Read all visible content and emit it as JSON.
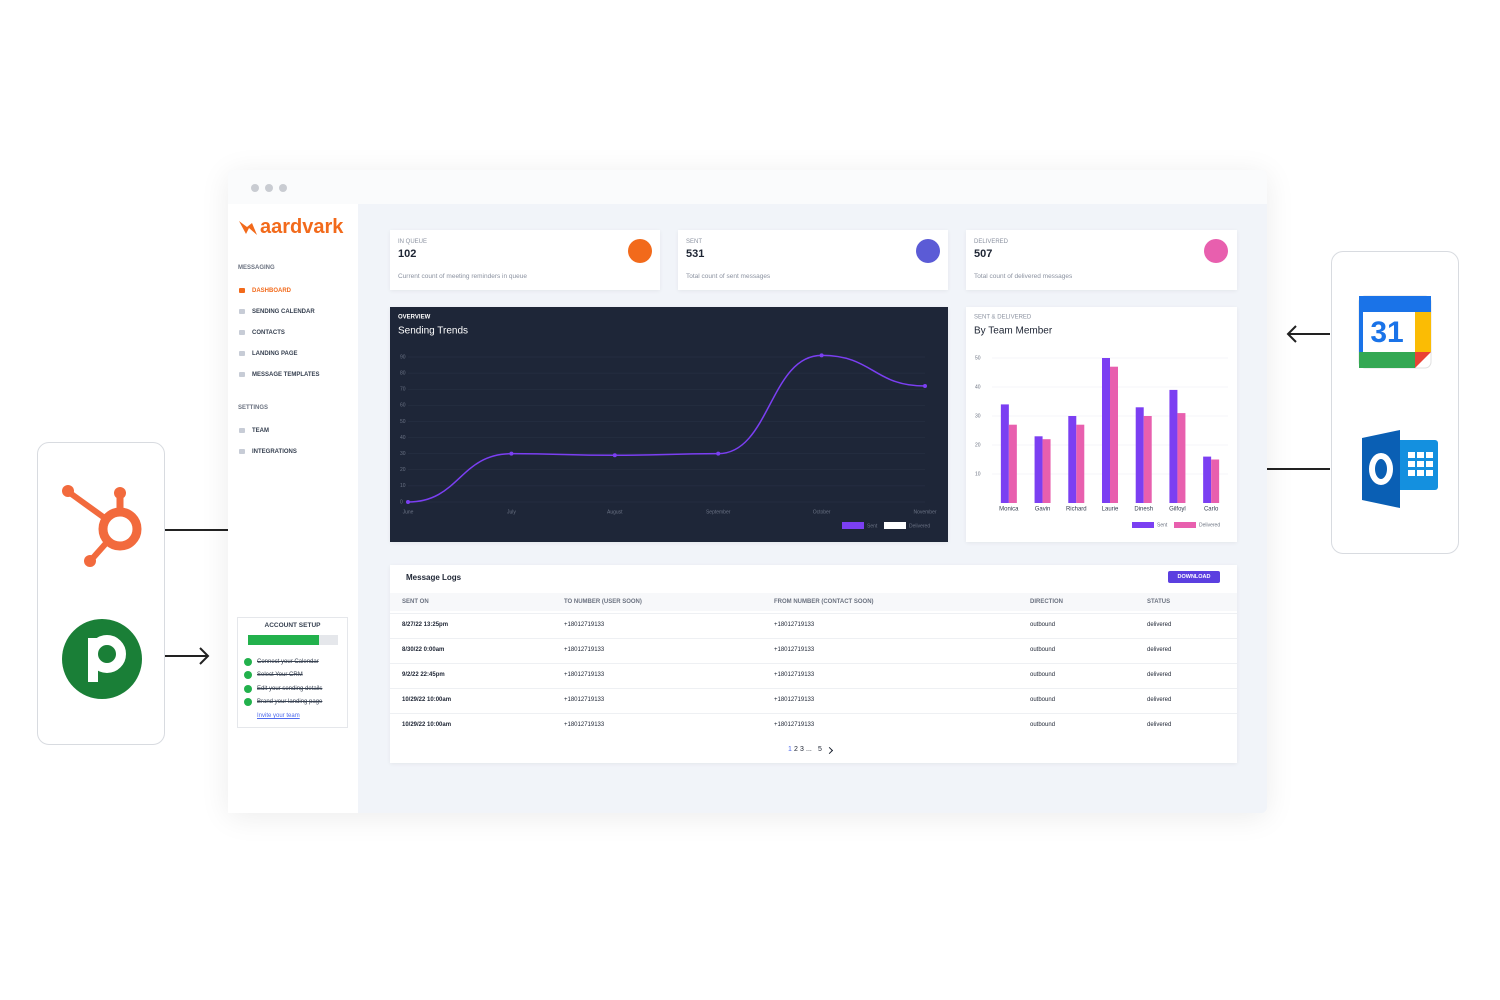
{
  "sidebar": {
    "logo": "aardvark",
    "sections": [
      {
        "label": "MESSAGING",
        "items": [
          "DASHBOARD",
          "SENDING CALENDAR",
          "CONTACTS",
          "LANDING PAGE",
          "MESSAGE TEMPLATES"
        ]
      },
      {
        "label": "SETTINGS",
        "items": [
          "TEAM",
          "INTEGRATIONS"
        ]
      }
    ],
    "account_setup": {
      "title": "ACCOUNT SETUP",
      "steps": [
        "Connect your Calendar",
        "Select Your CRM",
        "Edit your sending details",
        "Brand your landing page"
      ],
      "link": "Invite your team"
    }
  },
  "stats": [
    {
      "label": "IN QUEUE",
      "value": "102",
      "description": "Current count of meeting reminders in queue"
    },
    {
      "label": "SENT",
      "value": "531",
      "description": "Total count of sent messages"
    },
    {
      "label": "DELIVERED",
      "value": "507",
      "description": "Total count of delivered messages"
    }
  ],
  "chart_data": [
    {
      "type": "line",
      "subtitle": "OVERVIEW",
      "title": "Sending Trends",
      "categories": [
        "June",
        "July",
        "August",
        "September",
        "October",
        "November"
      ],
      "series": [
        {
          "name": "Sent",
          "color": "#7b3ff2",
          "values": [
            0,
            30,
            29,
            30,
            91,
            72
          ]
        },
        {
          "name": "Delivered",
          "color": "#ffffff",
          "values": [
            null,
            null,
            null,
            null,
            null,
            null
          ]
        }
      ],
      "ylim": [
        0,
        90
      ],
      "yticks": [
        0,
        10,
        20,
        30,
        40,
        50,
        60,
        70,
        80,
        90
      ]
    },
    {
      "type": "bar",
      "subtitle": "SENT & DELIVERED",
      "title": "By Team Member",
      "categories": [
        "Monica",
        "Gavin",
        "Richard",
        "Laurie",
        "Dinesh",
        "Gilfoyl",
        "Carlo"
      ],
      "series": [
        {
          "name": "Sent",
          "color": "#7b3ff2",
          "values": [
            34,
            23,
            30,
            50,
            33,
            39,
            16
          ]
        },
        {
          "name": "Delivered",
          "color": "#e85fae",
          "values": [
            27,
            22,
            27,
            47,
            30,
            31,
            15
          ]
        }
      ],
      "ylim": [
        0,
        50
      ],
      "yticks": [
        10,
        20,
        30,
        40,
        50
      ]
    }
  ],
  "message_logs": {
    "title": "Message Logs",
    "button": "DOWNLOAD",
    "columns": [
      "SENT ON",
      "TO NUMBER (USER SOON)",
      "FROM NUMBER (CONTACT SOON)",
      "DIRECTION",
      "STATUS"
    ],
    "rows": [
      [
        "8/27/22 13:25pm",
        "+18012719133",
        "+18012719133",
        "outbound",
        "delivered"
      ],
      [
        "8/30/22 0:00am",
        "+18012719133",
        "+18012719133",
        "outbound",
        "delivered"
      ],
      [
        "9/2/22 22:45pm",
        "+18012719133",
        "+18012719133",
        "outbound",
        "delivered"
      ],
      [
        "10/29/22 10:00am",
        "+18012719133",
        "+18012719133",
        "outbound",
        "delivered"
      ],
      [
        "10/29/22 10:00am",
        "+18012719133",
        "+18012719133",
        "outbound",
        "delivered"
      ]
    ],
    "pagination": [
      "1",
      "2",
      "3",
      "...",
      "5"
    ]
  },
  "integrations": {
    "calendar_day": "31"
  }
}
